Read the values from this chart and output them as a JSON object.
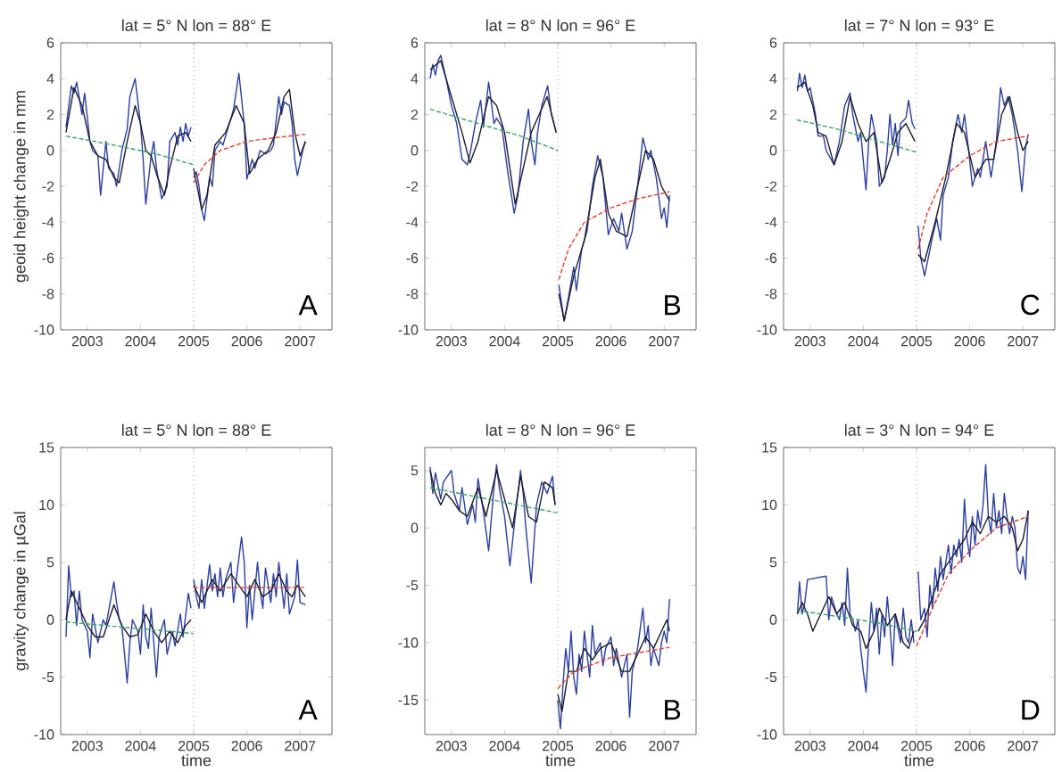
{
  "chart_data": [
    {
      "type": "line",
      "title": "lat = 5° N lon = 88° E",
      "ylabel": "geoid height change in mm",
      "xlim": [
        2002.5,
        2007.6
      ],
      "xticks": [
        2003,
        2004,
        2005,
        2006,
        2007
      ],
      "ylim": [
        -10,
        6
      ],
      "yticks": [
        -10,
        -8,
        -6,
        -4,
        -2,
        0,
        2,
        4,
        6
      ],
      "marker": "none",
      "annotations": [
        "A"
      ],
      "ref_lines": [
        {
          "axis": "x",
          "value": 2005,
          "color": "#999999",
          "line_style": "dotted"
        }
      ],
      "series": [
        {
          "color": "#2b3fa0",
          "line_style": "solid",
          "x": [
            2002.6,
            2002.7,
            2002.75,
            2002.8,
            2002.9,
            2002.95,
            2003.05,
            2003.1,
            2003.2,
            2003.25,
            2003.35,
            2003.4,
            2003.5,
            2003.55,
            2003.65,
            2003.75,
            2003.8,
            2003.9,
            2004.0,
            2004.05,
            2004.1,
            2004.2,
            2004.25,
            2004.3,
            2004.4,
            2004.5,
            2004.55,
            2004.65,
            2004.7,
            2004.75,
            2004.8,
            2004.85,
            2004.9,
            2004.95,
            2004.98,
            2005.0,
            2005.05,
            2005.1,
            2005.15,
            2005.2,
            2005.3,
            2005.35,
            2005.4,
            2005.5,
            2005.55,
            2005.65,
            2005.75,
            2005.85,
            2005.95,
            2006.0,
            2006.1,
            2006.15,
            2006.25,
            2006.35,
            2006.45,
            2006.5,
            2006.6,
            2006.65,
            2006.7,
            2006.8,
            2006.85,
            2006.9,
            2006.95,
            2007.05,
            2007.1
          ],
          "values": [
            1.3,
            3.6,
            3.2,
            3.8,
            2.0,
            3.2,
            0.5,
            0,
            -0.3,
            -2.5,
            0.5,
            -1,
            -1.3,
            -2,
            0,
            1.2,
            3,
            4,
            1.5,
            -0.5,
            -3,
            -0.3,
            0.5,
            -1,
            -2.7,
            -2,
            0.5,
            1.0,
            0.3,
            1.3,
            0.5,
            1.5,
            0.8,
            1.3,
            null,
            -1.5,
            -1.2,
            -2,
            -3.3,
            -3.9,
            -1.5,
            -2,
            0,
            0.5,
            0.3,
            1.3,
            2.3,
            4.3,
            1.5,
            -1.6,
            -0.5,
            -1,
            0,
            -0.2,
            0,
            0.3,
            3.0,
            2.0,
            2.7,
            2.5,
            1.5,
            -0.5,
            -1.4,
            0,
            0.5
          ]
        },
        {
          "color": "#1c1c2c",
          "line_style": "solid",
          "x": [
            2002.6,
            2002.75,
            2002.9,
            2003.05,
            2003.2,
            2003.35,
            2003.5,
            2003.6,
            2003.75,
            2003.9,
            2004.0,
            2004.1,
            2004.2,
            2004.3,
            2004.45,
            2004.55,
            2004.7,
            2004.85,
            2004.95,
            2004.98,
            2005.0,
            2005.15,
            2005.25,
            2005.4,
            2005.6,
            2005.8,
            2005.95,
            2006.05,
            2006.2,
            2006.4,
            2006.55,
            2006.7,
            2006.8,
            2006.9,
            2007.0,
            2007.1
          ],
          "values": [
            1.0,
            3.5,
            2.5,
            0.5,
            -0.3,
            -0.5,
            -1.5,
            -1.8,
            0.5,
            2.5,
            1.5,
            0,
            -0.3,
            -1.3,
            -2.5,
            -1,
            0.8,
            1,
            0.5,
            null,
            -1.0,
            -3.3,
            -2.5,
            0.3,
            1.0,
            2.5,
            1.5,
            -1.3,
            -0.5,
            0,
            1,
            3.0,
            3.4,
            1,
            -0.3,
            0.5
          ]
        },
        {
          "color": "#3aa860",
          "line_style": "dashed",
          "x": [
            2002.6,
            2003.5,
            2004.3,
            2005.0
          ],
          "values": [
            0.8,
            0.3,
            -0.2,
            -0.8
          ]
        },
        {
          "color": "#e0402a",
          "line_style": "dashed",
          "x": [
            2005.0,
            2005.2,
            2005.5,
            2006.0,
            2006.5,
            2007.1
          ],
          "values": [
            -1.8,
            -0.8,
            0,
            0.5,
            0.7,
            0.9
          ]
        }
      ]
    },
    {
      "type": "line",
      "title": "lat = 8° N lon = 96° E",
      "xlim": [
        2002.5,
        2007.6
      ],
      "xticks": [
        2003,
        2004,
        2005,
        2006,
        2007
      ],
      "ylim": [
        -10,
        6
      ],
      "yticks": [
        -10,
        -8,
        -6,
        -4,
        -2,
        0,
        2,
        4,
        6
      ],
      "marker": "none",
      "annotations": [
        "B"
      ],
      "ref_lines": [
        {
          "axis": "x",
          "value": 2005,
          "color": "#999999",
          "line_style": "dotted"
        }
      ],
      "series": [
        {
          "color": "#2b3fa0",
          "line_style": "solid",
          "x": [
            2002.6,
            2002.65,
            2002.7,
            2002.75,
            2002.8,
            2002.9,
            2003.0,
            2003.1,
            2003.2,
            2003.3,
            2003.35,
            2003.45,
            2003.55,
            2003.6,
            2003.7,
            2003.75,
            2003.8,
            2003.85,
            2003.95,
            2004.05,
            2004.18,
            2004.25,
            2004.35,
            2004.45,
            2004.5,
            2004.57,
            2004.62,
            2004.7,
            2004.81,
            2004.88,
            2004.97,
            2004.99,
            2005.02,
            2005.12,
            2005.2,
            2005.3,
            2005.35,
            2005.45,
            2005.55,
            2005.65,
            2005.75,
            2005.85,
            2005.95,
            2006.05,
            2006.15,
            2006.2,
            2006.3,
            2006.4,
            2006.5,
            2006.6,
            2006.7,
            2006.75,
            2006.85,
            2006.95,
            2007.0,
            2007.05,
            2007.1
          ],
          "values": [
            4.0,
            4.8,
            4.2,
            5.0,
            5.3,
            4.0,
            2.5,
            1.5,
            -0.5,
            -0.8,
            -0.2,
            1.5,
            2.8,
            1.3,
            3.8,
            2.7,
            1.5,
            1.8,
            1.3,
            -1.0,
            -3.5,
            -2.5,
            0.5,
            2.3,
            0.5,
            -0.8,
            1.0,
            2.5,
            3.6,
            2.0,
            1.0,
            null,
            -7.5,
            -9.5,
            -8.2,
            -6.5,
            -7.8,
            -5.5,
            -4.5,
            -2.0,
            -0.3,
            -1.5,
            -4.7,
            -3.8,
            -4.5,
            -3.5,
            -5.5,
            -4.5,
            -2.0,
            0.7,
            -0.5,
            0,
            -1.5,
            -3.8,
            -3.2,
            -4.3,
            -2.5
          ]
        },
        {
          "color": "#1c1c2c",
          "line_style": "solid",
          "x": [
            2002.6,
            2002.8,
            2003.0,
            2003.2,
            2003.35,
            2003.5,
            2003.7,
            2003.85,
            2004.0,
            2004.2,
            2004.35,
            2004.5,
            2004.65,
            2004.8,
            2004.97,
            2004.99,
            2005.02,
            2005.12,
            2005.3,
            2005.5,
            2005.7,
            2005.8,
            2005.95,
            2006.1,
            2006.3,
            2006.5,
            2006.65,
            2006.8,
            2006.95,
            2007.1
          ],
          "values": [
            4.5,
            5.0,
            3.0,
            1.0,
            -0.7,
            0.5,
            3.0,
            2.5,
            1.0,
            -3.0,
            -1.0,
            1.0,
            2.0,
            3.0,
            1.0,
            null,
            -8.0,
            -9.5,
            -7.0,
            -5.0,
            -1.5,
            -0.5,
            -3.5,
            -4.5,
            -4.8,
            -2.0,
            0,
            -0.5,
            -2.0,
            -2.8
          ]
        },
        {
          "color": "#3aa860",
          "line_style": "dashed",
          "x": [
            2002.6,
            2003.5,
            2004.3,
            2005.0
          ],
          "values": [
            2.3,
            1.5,
            0.8,
            0
          ]
        },
        {
          "color": "#e0402a",
          "line_style": "dashed",
          "x": [
            2005.02,
            2005.2,
            2005.5,
            2006.0,
            2006.5,
            2007.1
          ],
          "values": [
            -7.2,
            -5.5,
            -4.0,
            -3.2,
            -2.7,
            -2.3
          ]
        }
      ]
    },
    {
      "type": "line",
      "title": "lat = 7° N lon = 93° E",
      "xlim": [
        2002.5,
        2007.6
      ],
      "xticks": [
        2003,
        2004,
        2005,
        2006,
        2007
      ],
      "ylim": [
        -10,
        6
      ],
      "yticks": [
        -10,
        -8,
        -6,
        -4,
        -2,
        0,
        2,
        4,
        6
      ],
      "marker": "none",
      "annotations": [
        "C"
      ],
      "ref_lines": [
        {
          "axis": "x",
          "value": 2005,
          "color": "#999999",
          "line_style": "dotted"
        }
      ],
      "series": [
        {
          "color": "#2b3fa0",
          "line_style": "solid",
          "x": [
            2002.76,
            2002.8,
            2002.85,
            2002.9,
            2002.95,
            2003.0,
            2003.1,
            2003.15,
            2003.25,
            2003.3,
            2003.45,
            2003.55,
            2003.65,
            2003.75,
            2003.8,
            2003.9,
            2003.95,
            2004.05,
            2004.1,
            2004.15,
            2004.25,
            2004.3,
            2004.4,
            2004.45,
            2004.5,
            2004.55,
            2004.6,
            2004.65,
            2004.7,
            2004.8,
            2004.85,
            2004.92,
            2004.97,
            2005.0,
            2005.03,
            2005.08,
            2005.15,
            2005.22,
            2005.3,
            2005.38,
            2005.45,
            2005.5,
            2005.6,
            2005.68,
            2005.78,
            2005.85,
            2005.9,
            2005.98,
            2006.05,
            2006.15,
            2006.2,
            2006.3,
            2006.4,
            2006.5,
            2006.58,
            2006.65,
            2006.72,
            2006.8,
            2006.9,
            2006.98,
            2007.05,
            2007.1
          ],
          "values": [
            3.3,
            4.3,
            3.5,
            4.2,
            3.3,
            3.5,
            2.0,
            0.8,
            0.8,
            0,
            -0.8,
            0.5,
            2.5,
            3.2,
            2.0,
            0.5,
            1.0,
            -2.2,
            0.5,
            2.0,
            0.5,
            -2.0,
            -1.5,
            0,
            2.0,
            0.3,
            1.5,
            -0.3,
            1.5,
            1.8,
            2.8,
            1.5,
            1.2,
            null,
            -4.2,
            -6.0,
            -7.0,
            -6.0,
            -4.8,
            -3.8,
            -5.0,
            -2.5,
            -1.5,
            0.5,
            2.0,
            1.0,
            2.0,
            0,
            -2.0,
            -1.0,
            -1.5,
            0.5,
            -1.5,
            0.5,
            3.5,
            2.5,
            3.0,
            2.0,
            0,
            -2.3,
            0.2,
            0.9
          ]
        },
        {
          "color": "#1c1c2c",
          "line_style": "solid",
          "x": [
            2002.75,
            2002.9,
            2003.05,
            2003.15,
            2003.3,
            2003.45,
            2003.6,
            2003.75,
            2003.9,
            2004.05,
            2004.2,
            2004.35,
            2004.5,
            2004.65,
            2004.8,
            2004.97,
            2005.0,
            2005.03,
            2005.15,
            2005.35,
            2005.55,
            2005.75,
            2005.9,
            2006.1,
            2006.3,
            2006.45,
            2006.6,
            2006.75,
            2006.9,
            2007.0,
            2007.1
          ],
          "values": [
            3.5,
            3.8,
            2.5,
            1.0,
            0.8,
            -0.8,
            0.5,
            3.0,
            1.5,
            0.5,
            1.0,
            -1.8,
            -0.5,
            1.0,
            1.5,
            0.5,
            null,
            -5.8,
            -6.2,
            -4.0,
            -1.5,
            1.5,
            1.0,
            -1.5,
            -0.5,
            -0.5,
            2.0,
            3.0,
            1.0,
            0,
            0.5
          ]
        },
        {
          "color": "#3aa860",
          "line_style": "dashed",
          "x": [
            2002.75,
            2003.5,
            2004.3,
            2005.0
          ],
          "values": [
            1.7,
            1.2,
            0.5,
            -0.1
          ]
        },
        {
          "color": "#e0402a",
          "line_style": "dashed",
          "x": [
            2005.03,
            2005.2,
            2005.5,
            2006.0,
            2006.5,
            2007.1
          ],
          "values": [
            -5.5,
            -3.5,
            -1.5,
            -0.3,
            0.5,
            0.8
          ]
        }
      ]
    },
    {
      "type": "line",
      "title": "lat = 5° N lon = 88° E",
      "xlabel": "time",
      "ylabel": "gravity change in µGal",
      "xlim": [
        2002.5,
        2007.6
      ],
      "xticks": [
        2003,
        2004,
        2005,
        2006,
        2007
      ],
      "ylim": [
        -10,
        15
      ],
      "yticks": [
        -10,
        -5,
        0,
        5,
        10,
        15
      ],
      "marker": "none",
      "annotations": [
        "A"
      ],
      "ref_lines": [
        {
          "axis": "x",
          "value": 2005,
          "color": "#999999",
          "line_style": "dotted"
        }
      ],
      "series": [
        {
          "color": "#2b3fa0",
          "line_style": "solid",
          "x": [
            2002.6,
            2002.65,
            2002.7,
            2002.75,
            2002.8,
            2002.85,
            2002.9,
            2003.0,
            2003.05,
            2003.1,
            2003.2,
            2003.3,
            2003.35,
            2003.45,
            2003.5,
            2003.55,
            2003.6,
            2003.65,
            2003.75,
            2003.8,
            2003.85,
            2003.95,
            2004.0,
            2004.05,
            2004.1,
            2004.15,
            2004.2,
            2004.3,
            2004.35,
            2004.45,
            2004.5,
            2004.6,
            2004.65,
            2004.75,
            2004.8,
            2004.9,
            2004.95,
            2004.98,
            2005.0,
            2005.05,
            2005.1,
            2005.15,
            2005.2,
            2005.3,
            2005.35,
            2005.4,
            2005.45,
            2005.5,
            2005.55,
            2005.6,
            2005.7,
            2005.75,
            2005.8,
            2005.9,
            2005.95,
            2006.0,
            2006.05,
            2006.1,
            2006.2,
            2006.25,
            2006.3,
            2006.35,
            2006.45,
            2006.5,
            2006.55,
            2006.6,
            2006.7,
            2006.75,
            2006.8,
            2006.9,
            2006.95,
            2007.0,
            2007.1
          ],
          "values": [
            -1.5,
            4.7,
            2.0,
            2.5,
            -0.5,
            2.5,
            0,
            -1.0,
            -3.3,
            0.5,
            -2.0,
            0,
            -0.5,
            2.0,
            3.3,
            1.5,
            0,
            -0.5,
            -5.5,
            -2,
            0,
            -1.0,
            -3.0,
            1.3,
            -1.5,
            -2.5,
            1.0,
            -5.0,
            -1.5,
            0,
            -3,
            -1,
            -2.3,
            0.5,
            -1.5,
            2.3,
            1.0,
            null,
            3.5,
            2.0,
            1.0,
            3.5,
            1.0,
            4.8,
            2.5,
            4.0,
            2.0,
            4.5,
            2.0,
            3.5,
            5.0,
            1.5,
            3.5,
            7.2,
            5,
            -0.7,
            3.0,
            0,
            5.0,
            2.5,
            1,
            4.5,
            1.5,
            4,
            2,
            5,
            1.0,
            4.0,
            0.5,
            2.0,
            5.2,
            1.5,
            1.3
          ]
        },
        {
          "color": "#1c1c2c",
          "line_style": "solid",
          "x": [
            2002.6,
            2002.7,
            2002.85,
            2003.0,
            2003.15,
            2003.3,
            2003.5,
            2003.65,
            2003.8,
            2003.95,
            2004.1,
            2004.25,
            2004.4,
            2004.55,
            2004.7,
            2004.85,
            2004.95,
            2004.98,
            2005.0,
            2005.15,
            2005.35,
            2005.5,
            2005.7,
            2005.85,
            2006.0,
            2006.15,
            2006.3,
            2006.45,
            2006.6,
            2006.75,
            2006.85,
            2006.95,
            2007.1
          ],
          "values": [
            0,
            2.5,
            1.0,
            -0.5,
            -1.5,
            -1.5,
            1.3,
            -0.5,
            -1.5,
            -1.3,
            0.5,
            -1.0,
            -2.0,
            -1.0,
            -2.0,
            -0.5,
            0,
            null,
            3.0,
            1.5,
            3.5,
            2.5,
            4.0,
            3.0,
            2.0,
            3.5,
            2.0,
            2.5,
            4.0,
            2.5,
            2.0,
            3.0,
            2.0
          ]
        },
        {
          "color": "#3aa860",
          "line_style": "dashed",
          "x": [
            2002.6,
            2005.0
          ],
          "values": [
            -0.2,
            -1.2
          ]
        },
        {
          "color": "#e0402a",
          "line_style": "dashed",
          "x": [
            2005.0,
            2007.1
          ],
          "values": [
            2.8,
            2.8
          ]
        }
      ]
    },
    {
      "type": "line",
      "title": "lat = 8° N lon = 96° E",
      "xlabel": "time",
      "xlim": [
        2002.5,
        2007.6
      ],
      "xticks": [
        2003,
        2004,
        2005,
        2006,
        2007
      ],
      "ylim": [
        -18,
        7
      ],
      "yticks": [
        -15,
        -10,
        -5,
        0,
        5
      ],
      "marker": "none",
      "annotations": [
        "B"
      ],
      "ref_lines": [
        {
          "axis": "x",
          "value": 2005,
          "color": "#999999",
          "line_style": "dotted"
        }
      ],
      "series": [
        {
          "color": "#2b3fa0",
          "line_style": "solid",
          "x": [
            2002.6,
            2002.65,
            2002.7,
            2002.8,
            2002.85,
            2003.0,
            2003.05,
            2003.15,
            2003.2,
            2003.3,
            2003.4,
            2003.45,
            2003.5,
            2003.6,
            2003.7,
            2003.8,
            2003.85,
            2003.9,
            2004.0,
            2004.1,
            2004.2,
            2004.3,
            2004.35,
            2004.4,
            2004.5,
            2004.6,
            2004.7,
            2004.8,
            2004.9,
            2004.95,
            2004.98,
            2005.0,
            2005.05,
            2005.1,
            2005.15,
            2005.2,
            2005.25,
            2005.3,
            2005.35,
            2005.4,
            2005.45,
            2005.5,
            2005.55,
            2005.6,
            2005.65,
            2005.7,
            2005.8,
            2005.85,
            2005.9,
            2006.0,
            2006.05,
            2006.1,
            2006.2,
            2006.3,
            2006.35,
            2006.4,
            2006.5,
            2006.6,
            2006.65,
            2006.7,
            2006.75,
            2006.8,
            2006.9,
            2006.95,
            2007.0,
            2007.05,
            2007.1
          ],
          "values": [
            5.3,
            3.0,
            4.8,
            2.5,
            4.0,
            5.0,
            3.0,
            1.5,
            3.5,
            0.3,
            2.0,
            0.5,
            4.3,
            1.5,
            -2.0,
            3.5,
            5.5,
            3.5,
            1.0,
            -3.3,
            1.0,
            5.0,
            3.0,
            0,
            -4.8,
            2.0,
            4.0,
            3.0,
            4.5,
            2.0,
            null,
            -15.0,
            -17.5,
            -13.5,
            -10.5,
            -12.5,
            -9.0,
            -13.0,
            -14.5,
            -11,
            -12.5,
            -9.0,
            -11,
            -13,
            -8.5,
            -11,
            -10,
            -12,
            -10.5,
            -9.5,
            -12,
            -10.5,
            -13,
            -11,
            -16.5,
            -12.5,
            -10.5,
            -7.0,
            -10.0,
            -8.5,
            -12.0,
            -10.5,
            -12,
            -10,
            -9,
            -10,
            -6.2
          ]
        },
        {
          "color": "#1c1c2c",
          "line_style": "solid",
          "x": [
            2002.6,
            2002.7,
            2002.8,
            2002.9,
            2003.0,
            2003.15,
            2003.3,
            2003.5,
            2003.65,
            2003.85,
            2004.0,
            2004.15,
            2004.3,
            2004.45,
            2004.6,
            2004.75,
            2004.9,
            2004.95,
            2004.98,
            2005.0,
            2005.08,
            2005.2,
            2005.35,
            2005.5,
            2005.65,
            2005.8,
            2006.0,
            2006.2,
            2006.35,
            2006.5,
            2006.65,
            2006.8,
            2006.95,
            2007.05,
            2007.1
          ],
          "values": [
            5.0,
            3.0,
            2.0,
            3.0,
            2.5,
            1.5,
            1.0,
            3.5,
            1.0,
            5.0,
            2.5,
            0,
            4.5,
            1.0,
            0.5,
            4.0,
            3.5,
            2.0,
            null,
            -14.5,
            -16.0,
            -12.5,
            -12.5,
            -10.5,
            -11.5,
            -10.5,
            -10.0,
            -12.5,
            -12.5,
            -11,
            -9.5,
            -10.5,
            -9.0,
            -8.0,
            -9.0
          ]
        },
        {
          "color": "#3aa860",
          "line_style": "dashed",
          "x": [
            2002.6,
            2005.0
          ],
          "values": [
            3.5,
            1.3
          ]
        },
        {
          "color": "#e0402a",
          "line_style": "dashed",
          "x": [
            2005.0,
            2005.3,
            2006.0,
            2007.1
          ],
          "values": [
            -14,
            -12.5,
            -11.3,
            -10.4
          ]
        }
      ]
    },
    {
      "type": "line",
      "title": "lat = 3° N lon = 94° E",
      "xlabel": "time",
      "xlim": [
        2002.5,
        2007.6
      ],
      "xticks": [
        2003,
        2004,
        2005,
        2006,
        2007
      ],
      "ylim": [
        -10,
        15
      ],
      "yticks": [
        -10,
        -5,
        0,
        5,
        10,
        15
      ],
      "marker": "none",
      "annotations": [
        "D"
      ],
      "ref_lines": [
        {
          "axis": "x",
          "value": 2005,
          "color": "#999999",
          "line_style": "dotted"
        }
      ],
      "series": [
        {
          "color": "#2b3fa0",
          "line_style": "solid",
          "x": [
            2002.76,
            2002.8,
            2002.85,
            2002.9,
            2002.95,
            2003.3,
            2003.35,
            2003.4,
            2003.5,
            2003.55,
            2003.6,
            2003.65,
            2003.7,
            2003.75,
            2003.8,
            2003.85,
            2003.9,
            2003.95,
            2004.0,
            2004.05,
            2004.1,
            2004.15,
            2004.2,
            2004.25,
            2004.3,
            2004.35,
            2004.4,
            2004.45,
            2004.5,
            2004.55,
            2004.6,
            2004.7,
            2004.75,
            2004.8,
            2004.85,
            2004.9,
            2004.95,
            2004.99,
            2005.03,
            2005.08,
            2005.15,
            2005.2,
            2005.25,
            2005.3,
            2005.35,
            2005.4,
            2005.45,
            2005.5,
            2005.55,
            2005.6,
            2005.65,
            2005.7,
            2005.75,
            2005.8,
            2005.85,
            2005.9,
            2005.95,
            2006.0,
            2006.05,
            2006.1,
            2006.15,
            2006.2,
            2006.25,
            2006.3,
            2006.35,
            2006.4,
            2006.45,
            2006.5,
            2006.55,
            2006.6,
            2006.65,
            2006.7,
            2006.75,
            2006.8,
            2006.85,
            2006.9,
            2006.95,
            2007.0,
            2007.05,
            2007.1
          ],
          "values": [
            0.5,
            3.3,
            0.5,
            1.5,
            3.5,
            3.8,
            0,
            2.0,
            0.5,
            0,
            1.5,
            -0.5,
            4.5,
            0.5,
            0,
            -1,
            0,
            -2.5,
            -4.5,
            -6.3,
            -2.0,
            1.5,
            -1.0,
            1.0,
            -3.0,
            0.5,
            -1.5,
            2.0,
            -0.5,
            -4.0,
            0.5,
            -2.0,
            1.0,
            -1.5,
            -2.0,
            0,
            -2.0,
            null,
            4.2,
            0,
            1.0,
            -1.5,
            3.0,
            1.0,
            4.5,
            2.5,
            5.5,
            3.5,
            5.0,
            6.5,
            4.0,
            6.5,
            5.5,
            7.0,
            5.0,
            10.5,
            7.0,
            5.5,
            9.0,
            6.5,
            9.5,
            8.0,
            10.0,
            13.5,
            9.0,
            7.5,
            11.0,
            8.0,
            9.5,
            7.5,
            11.0,
            9.0,
            7.5,
            9.0,
            8.0,
            4.5,
            4.0,
            5.5,
            3.5,
            9.5
          ]
        },
        {
          "color": "#1c1c2c",
          "line_style": "solid",
          "x": [
            2002.76,
            2002.85,
            2002.95,
            2003.05,
            2003.2,
            2003.35,
            2003.5,
            2003.65,
            2003.8,
            2003.95,
            2004.05,
            2004.2,
            2004.3,
            2004.45,
            2004.6,
            2004.75,
            2004.85,
            2004.95,
            2004.99,
            2005.03,
            2005.15,
            2005.3,
            2005.45,
            2005.6,
            2005.75,
            2005.9,
            2006.05,
            2006.2,
            2006.35,
            2006.5,
            2006.65,
            2006.8,
            2006.9,
            2007.0,
            2007.1
          ],
          "values": [
            0.5,
            1.5,
            0.5,
            -1.0,
            0.5,
            2.0,
            0.5,
            1.5,
            -0.5,
            -1.0,
            -2.5,
            -1.0,
            1.0,
            -0.5,
            0.5,
            -2.0,
            -2.5,
            -1.0,
            null,
            -1.0,
            0,
            2.0,
            4.0,
            5.0,
            6.0,
            7.0,
            8.5,
            7.5,
            9.0,
            8.5,
            9.0,
            8.0,
            6.0,
            7.0,
            9.5
          ]
        },
        {
          "color": "#3aa860",
          "line_style": "dashed",
          "x": [
            2002.76,
            2003.5,
            2004.3,
            2005.0
          ],
          "values": [
            0.8,
            0.3,
            -0.3,
            -1.0
          ]
        },
        {
          "color": "#e0402a",
          "line_style": "dashed",
          "x": [
            2005.0,
            2005.3,
            2005.6,
            2006.0,
            2006.5,
            2007.1
          ],
          "values": [
            -2.3,
            1.0,
            4.0,
            6.0,
            8.0,
            9.0
          ]
        }
      ]
    }
  ]
}
